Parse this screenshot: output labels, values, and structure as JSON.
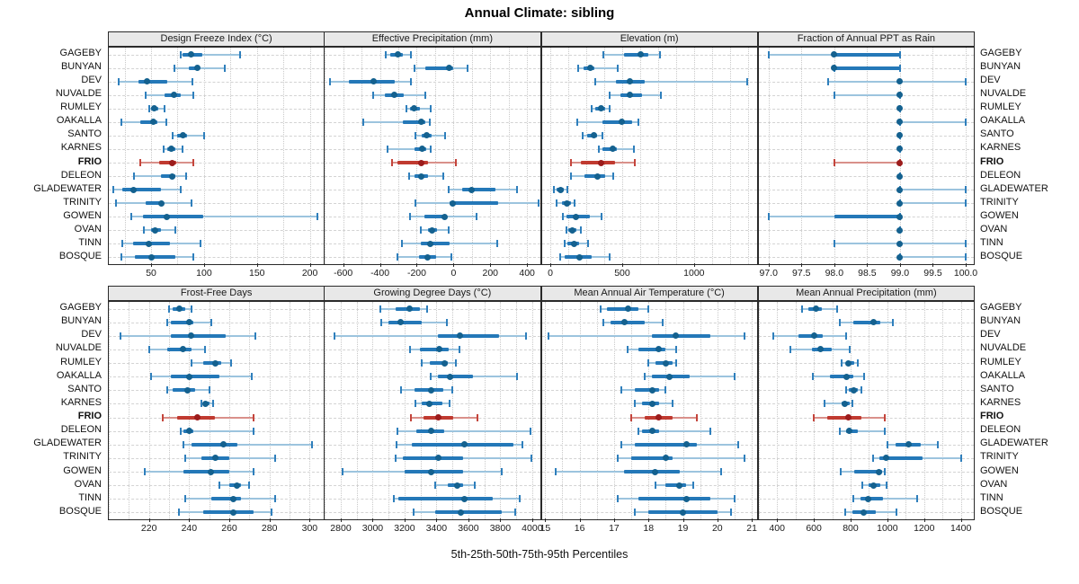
{
  "title": "Annual Climate: sibling",
  "xlabel": "5th-25th-50th-75th-95th Percentiles",
  "percentiles": [
    "5th",
    "25th",
    "50th",
    "75th",
    "95th"
  ],
  "sites": [
    "GAGEBY",
    "BUNYAN",
    "DEV",
    "NUVALDE",
    "RUMLEY",
    "OAKALLA",
    "SANTO",
    "KARNES",
    "FRIO",
    "DELEON",
    "GLADEWATER",
    "TRINITY",
    "GOWEN",
    "OVAN",
    "TINN",
    "BOSQUE"
  ],
  "highlight_site": "FRIO",
  "colors": {
    "blue_dot": "#14618f",
    "blue_box": "#2478b8",
    "blue_cap": "#2f7fbc",
    "blue_whisker": "#9cc4de",
    "red_dot": "#9c1c1c",
    "red_box": "#c03a30",
    "red_cap": "#c4453c",
    "red_whisker": "#d9908a",
    "panel_header_bg": "#e8e8e8",
    "panel_border": "#2a2a2a",
    "grid": "#c9c9c9"
  },
  "chart_data": [
    {
      "type": "percentile-dotplot",
      "panel": "Design Freeze Index (°C)",
      "row": 0,
      "col": 0,
      "xlim": [
        10,
        215
      ],
      "ticks": [
        50,
        100,
        150,
        200
      ],
      "tick_labels": [
        "50",
        "100",
        "150",
        "200"
      ],
      "grid_step": 25,
      "values": {
        "GAGEBY": [
          78,
          80,
          88,
          98,
          134
        ],
        "BUNYAN": [
          72,
          86,
          94,
          96,
          120
        ],
        "DEV": [
          19,
          38,
          46,
          65,
          89
        ],
        "NUVALDE": [
          45,
          63,
          72,
          78,
          90
        ],
        "RUMLEY": [
          48,
          50,
          53,
          57,
          63
        ],
        "OAKALLA": [
          22,
          40,
          52,
          56,
          64
        ],
        "SANTO": [
          70,
          75,
          80,
          84,
          100
        ],
        "KARNES": [
          62,
          65,
          69,
          73,
          80
        ],
        "FRIO": [
          40,
          58,
          70,
          74,
          90
        ],
        "DELEON": [
          34,
          59,
          70,
          73,
          83
        ],
        "GLADEWATER": [
          14,
          23,
          33,
          59,
          78
        ],
        "TRINITY": [
          17,
          45,
          60,
          62,
          88
        ],
        "GOWEN": [
          31,
          42,
          65,
          99,
          207
        ],
        "OVAN": [
          43,
          50,
          54,
          59,
          73
        ],
        "TINN": [
          23,
          33,
          48,
          68,
          97
        ],
        "BOSQUE": [
          22,
          35,
          50,
          73,
          90
        ]
      }
    },
    {
      "type": "percentile-dotplot",
      "panel": "Effective Precipitation (mm)",
      "row": 0,
      "col": 1,
      "xlim": [
        -700,
        480
      ],
      "ticks": [
        -600,
        -400,
        -200,
        0,
        200,
        400
      ],
      "tick_labels": [
        "-600",
        "-400",
        "-200",
        "0",
        "200",
        "400"
      ],
      "grid_step": 100,
      "values": {
        "GAGEBY": [
          -370,
          -345,
          -305,
          -275,
          -230
        ],
        "BUNYAN": [
          -210,
          -155,
          -25,
          0,
          75
        ],
        "DEV": [
          -670,
          -570,
          -435,
          -320,
          -230
        ],
        "NUVALDE": [
          -435,
          -375,
          -320,
          -270,
          -155
        ],
        "RUMLEY": [
          -255,
          -235,
          -215,
          -185,
          -125
        ],
        "OAKALLA": [
          -490,
          -275,
          -175,
          -155,
          -130
        ],
        "SANTO": [
          -205,
          -175,
          -145,
          -120,
          -45
        ],
        "KARNES": [
          -360,
          -210,
          -170,
          -150,
          -125
        ],
        "FRIO": [
          -335,
          -305,
          -175,
          -140,
          15
        ],
        "DELEON": [
          -240,
          -210,
          -175,
          -140,
          -55
        ],
        "GLADEWATER": [
          -25,
          45,
          100,
          230,
          345
        ],
        "TRINITY": [
          -205,
          -20,
          -5,
          245,
          465
        ],
        "GOWEN": [
          -235,
          -160,
          -50,
          -40,
          125
        ],
        "OVAN": [
          -180,
          -140,
          -115,
          -90,
          -25
        ],
        "TINN": [
          -280,
          -180,
          -125,
          -20,
          240
        ],
        "BOSQUE": [
          -305,
          -190,
          -140,
          -95,
          -10
        ]
      }
    },
    {
      "type": "percentile-dotplot",
      "panel": "Elevation (m)",
      "row": 0,
      "col": 2,
      "xlim": [
        -60,
        1450
      ],
      "ticks": [
        0,
        500,
        1000
      ],
      "tick_labels": [
        "0",
        "500",
        "1000"
      ],
      "grid_step": 125,
      "values": {
        "GAGEBY": [
          370,
          515,
          630,
          680,
          760
        ],
        "BUNYAN": [
          195,
          230,
          275,
          305,
          470
        ],
        "DEV": [
          310,
          455,
          555,
          655,
          1370
        ],
        "NUVALDE": [
          410,
          485,
          555,
          640,
          770
        ],
        "RUMLEY": [
          285,
          310,
          350,
          380,
          410
        ],
        "OAKALLA": [
          190,
          365,
          500,
          570,
          610
        ],
        "SANTO": [
          225,
          255,
          300,
          325,
          360
        ],
        "KARNES": [
          335,
          365,
          435,
          465,
          580
        ],
        "FRIO": [
          145,
          210,
          350,
          450,
          590
        ],
        "DELEON": [
          145,
          235,
          330,
          380,
          440
        ],
        "GLADEWATER": [
          27,
          42,
          70,
          95,
          120
        ],
        "TRINITY": [
          42,
          80,
          115,
          145,
          170
        ],
        "GOWEN": [
          90,
          115,
          180,
          275,
          355
        ],
        "OVAN": [
          110,
          125,
          150,
          180,
          210
        ],
        "TINN": [
          100,
          120,
          165,
          200,
          260
        ],
        "BOSQUE": [
          70,
          100,
          200,
          290,
          410
        ]
      }
    },
    {
      "type": "percentile-dotplot",
      "panel": "Fraction of Annual PPT as Rain",
      "row": 0,
      "col": 3,
      "xlim": [
        96.85,
        100.15
      ],
      "ticks": [
        97.0,
        97.5,
        98.0,
        98.5,
        99.0,
        99.5,
        100.0
      ],
      "tick_labels": [
        "97.0",
        "97.5",
        "98.0",
        "98.5",
        "99.0",
        "99.5",
        "100.0"
      ],
      "grid_step": 0.5,
      "values": {
        "GAGEBY": [
          97.0,
          98.0,
          98.0,
          99.0,
          99.0
        ],
        "BUNYAN": [
          98.0,
          98.0,
          98.0,
          99.0,
          99.0
        ],
        "DEV": [
          97.9,
          99.0,
          99.0,
          99.0,
          100.0
        ],
        "NUVALDE": [
          98.0,
          99.0,
          99.0,
          99.0,
          99.0
        ],
        "RUMLEY": [
          99.0,
          99.0,
          99.0,
          99.0,
          99.0
        ],
        "OAKALLA": [
          99.0,
          99.0,
          99.0,
          99.0,
          100.0
        ],
        "SANTO": [
          99.0,
          99.0,
          99.0,
          99.0,
          99.0
        ],
        "KARNES": [
          99.0,
          99.0,
          99.0,
          99.0,
          99.0
        ],
        "FRIO": [
          98.0,
          99.0,
          99.0,
          99.0,
          99.0
        ],
        "DELEON": [
          99.0,
          99.0,
          99.0,
          99.0,
          99.0
        ],
        "GLADEWATER": [
          99.0,
          99.0,
          99.0,
          99.0,
          100.0
        ],
        "TRINITY": [
          99.0,
          99.0,
          99.0,
          99.0,
          100.0
        ],
        "GOWEN": [
          97.0,
          98.0,
          99.0,
          99.0,
          99.0
        ],
        "OVAN": [
          99.0,
          99.0,
          99.0,
          99.0,
          99.0
        ],
        "TINN": [
          98.0,
          99.0,
          99.0,
          99.0,
          100.0
        ],
        "BOSQUE": [
          99.0,
          99.0,
          99.0,
          99.0,
          100.0
        ]
      }
    },
    {
      "type": "percentile-dotplot",
      "panel": "Frost-Free Days",
      "row": 1,
      "col": 0,
      "xlim": [
        200,
        308
      ],
      "ticks": [
        220,
        240,
        260,
        280,
        300
      ],
      "tick_labels": [
        "220",
        "240",
        "260",
        "280",
        "300"
      ],
      "grid_step": 10,
      "values": {
        "GAGEBY": [
          230,
          232,
          235,
          238,
          241
        ],
        "BUNYAN": [
          229,
          231,
          240,
          242,
          251
        ],
        "DEV": [
          206,
          231,
          241,
          258,
          273
        ],
        "NUVALDE": [
          220,
          229,
          237,
          241,
          248
        ],
        "RUMLEY": [
          241,
          247,
          253,
          256,
          261
        ],
        "OAKALLA": [
          221,
          231,
          240,
          255,
          271
        ],
        "SANTO": [
          229,
          232,
          239,
          243,
          250
        ],
        "KARNES": [
          246,
          247,
          248,
          250,
          252
        ],
        "FRIO": [
          227,
          234,
          244,
          253,
          272
        ],
        "DELEON": [
          236,
          237,
          240,
          242,
          272
        ],
        "GLADEWATER": [
          237,
          241,
          257,
          264,
          301
        ],
        "TRINITY": [
          238,
          246,
          253,
          260,
          283
        ],
        "GOWEN": [
          218,
          237,
          251,
          260,
          272
        ],
        "OVAN": [
          255,
          260,
          264,
          266,
          270
        ],
        "TINN": [
          238,
          251,
          262,
          266,
          283
        ],
        "BOSQUE": [
          235,
          247,
          262,
          272,
          281
        ]
      }
    },
    {
      "type": "percentile-dotplot",
      "panel": "Growing Degree Days (°C)",
      "row": 1,
      "col": 1,
      "xlim": [
        2700,
        4060
      ],
      "ticks": [
        2800,
        3000,
        3200,
        3400,
        3600,
        3800,
        4000
      ],
      "tick_labels": [
        "2800",
        "3000",
        "3200",
        "3400",
        "3600",
        "3800",
        "4000"
      ],
      "grid_step": 100,
      "values": {
        "GAGEBY": [
          3050,
          3145,
          3230,
          3295,
          3340
        ],
        "BUNYAN": [
          3055,
          3100,
          3175,
          3305,
          3465
        ],
        "DEV": [
          2760,
          3410,
          3545,
          3790,
          3960
        ],
        "NUVALDE": [
          3235,
          3295,
          3415,
          3475,
          3545
        ],
        "RUMLEY": [
          3305,
          3360,
          3450,
          3470,
          3520
        ],
        "OAKALLA": [
          3365,
          3410,
          3485,
          3630,
          3905
        ],
        "SANTO": [
          3175,
          3260,
          3365,
          3440,
          3500
        ],
        "KARNES": [
          3270,
          3310,
          3355,
          3435,
          3480
        ],
        "FRIO": [
          3240,
          3320,
          3410,
          3505,
          3655
        ],
        "DELEON": [
          3155,
          3275,
          3365,
          3450,
          3990
        ],
        "GLADEWATER": [
          3150,
          3245,
          3575,
          3885,
          3940
        ],
        "TRINITY": [
          3145,
          3190,
          3410,
          3565,
          3995
        ],
        "GOWEN": [
          2810,
          3200,
          3365,
          3565,
          3810
        ],
        "OVAN": [
          3390,
          3470,
          3530,
          3565,
          3640
        ],
        "TINN": [
          3135,
          3160,
          3575,
          3750,
          3920
        ],
        "BOSQUE": [
          3255,
          3390,
          3555,
          3810,
          3895
        ]
      }
    },
    {
      "type": "percentile-dotplot",
      "panel": "Mean Annual Air Temperature (°C)",
      "row": 1,
      "col": 2,
      "xlim": [
        14.9,
        21.2
      ],
      "ticks": [
        15,
        16,
        17,
        18,
        19,
        20,
        21
      ],
      "tick_labels": [
        "15",
        "16",
        "17",
        "18",
        "19",
        "20",
        "21"
      ],
      "grid_step": 0.5,
      "values": {
        "GAGEBY": [
          16.6,
          16.8,
          17.4,
          17.7,
          18.0
        ],
        "BUNYAN": [
          16.7,
          16.9,
          17.3,
          17.9,
          18.4
        ],
        "DEV": [
          15.1,
          18.1,
          18.8,
          19.8,
          20.8
        ],
        "NUVALDE": [
          17.4,
          17.7,
          18.3,
          18.5,
          18.8
        ],
        "RUMLEY": [
          18.0,
          18.2,
          18.5,
          18.7,
          18.8
        ],
        "OAKALLA": [
          17.9,
          18.1,
          18.6,
          19.2,
          20.5
        ],
        "SANTO": [
          17.2,
          17.6,
          18.1,
          18.3,
          18.5
        ],
        "KARNES": [
          17.6,
          17.8,
          18.1,
          18.3,
          18.7
        ],
        "FRIO": [
          17.5,
          17.9,
          18.3,
          18.7,
          19.4
        ],
        "DELEON": [
          17.7,
          17.8,
          18.1,
          18.3,
          19.8
        ],
        "GLADEWATER": [
          17.2,
          17.6,
          19.1,
          19.4,
          20.6
        ],
        "TRINITY": [
          17.1,
          17.5,
          18.5,
          18.7,
          20.8
        ],
        "GOWEN": [
          15.3,
          17.3,
          18.2,
          18.9,
          20.1
        ],
        "OVAN": [
          18.2,
          18.5,
          18.9,
          19.1,
          19.3
        ],
        "TINN": [
          17.1,
          17.7,
          19.1,
          19.8,
          20.5
        ],
        "BOSQUE": [
          17.6,
          18.0,
          19.0,
          20.0,
          20.4
        ]
      }
    },
    {
      "type": "percentile-dotplot",
      "panel": "Mean Annual Precipitation (mm)",
      "row": 1,
      "col": 3,
      "xlim": [
        300,
        1480
      ],
      "ticks": [
        400,
        600,
        800,
        1000,
        1200,
        1400
      ],
      "tick_labels": [
        "400",
        "600",
        "800",
        "1000",
        "1200",
        "1400"
      ],
      "grid_step": 100,
      "values": {
        "GAGEBY": [
          535,
          570,
          610,
          645,
          725
        ],
        "BUNYAN": [
          740,
          815,
          925,
          960,
          1030
        ],
        "DEV": [
          380,
          515,
          600,
          650,
          775
        ],
        "NUVALDE": [
          470,
          590,
          635,
          695,
          795
        ],
        "RUMLEY": [
          750,
          775,
          790,
          820,
          840
        ],
        "OAKALLA": [
          595,
          690,
          780,
          815,
          875
        ],
        "SANTO": [
          775,
          790,
          815,
          840,
          860
        ],
        "KARNES": [
          660,
          750,
          770,
          795,
          810
        ],
        "FRIO": [
          600,
          675,
          790,
          860,
          985
        ],
        "DELEON": [
          740,
          775,
          795,
          840,
          985
        ],
        "GLADEWATER": [
          1000,
          1045,
          1115,
          1180,
          1275
        ],
        "TRINITY": [
          920,
          955,
          995,
          1190,
          1400
        ],
        "GOWEN": [
          745,
          820,
          955,
          970,
          985
        ],
        "OVAN": [
          865,
          900,
          925,
          960,
          995
        ],
        "TINN": [
          815,
          855,
          895,
          975,
          1160
        ],
        "BOSQUE": [
          770,
          810,
          870,
          935,
          1050
        ]
      }
    }
  ]
}
